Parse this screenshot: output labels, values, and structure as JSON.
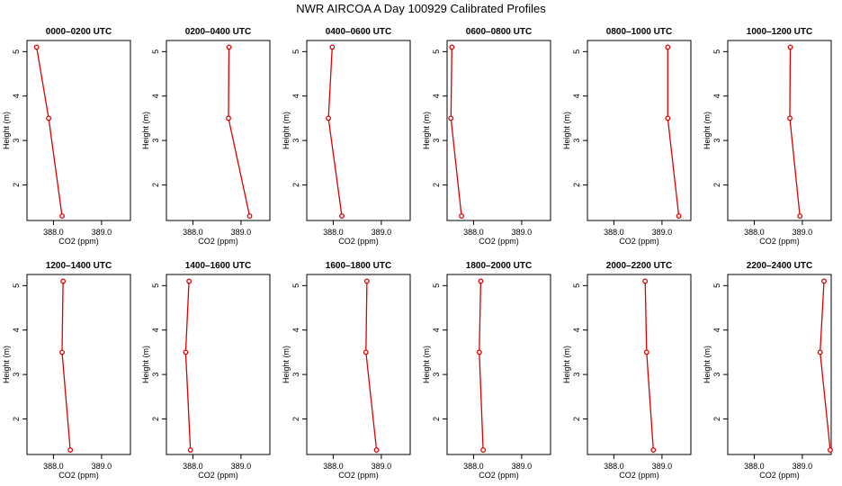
{
  "figure": {
    "title": "NWR AIRCOA A  Day 100929  Calibrated Profiles",
    "colors": {
      "line": "#dd0000",
      "axis": "#000000"
    }
  },
  "chart_data": [
    {
      "type": "line",
      "title": "0000–0200 UTC",
      "xlabel": "CO2 (ppm)",
      "ylabel": "Height (m)",
      "xticks": [
        388.0,
        389.0
      ],
      "xtick_labels": [
        "388.0",
        "389.0"
      ],
      "yticks": [
        2,
        3,
        4,
        5
      ],
      "ytick_labels": [
        "2",
        "3",
        "4",
        "5"
      ],
      "xlim": [
        387.45,
        389.6
      ],
      "ylim": [
        1.2,
        5.25
      ],
      "x": [
        387.65,
        387.9,
        388.18
      ],
      "y": [
        5.1,
        3.5,
        1.3
      ]
    },
    {
      "type": "line",
      "title": "0200–0400 UTC",
      "xlabel": "CO2 (ppm)",
      "ylabel": "Height (m)",
      "xticks": [
        388.0,
        389.0
      ],
      "xtick_labels": [
        "388.0",
        "389.0"
      ],
      "yticks": [
        2,
        3,
        4,
        5
      ],
      "ytick_labels": [
        "2",
        "3",
        "4",
        "5"
      ],
      "xlim": [
        387.45,
        389.6
      ],
      "ylim": [
        1.2,
        5.25
      ],
      "x": [
        388.75,
        388.74,
        389.18
      ],
      "y": [
        5.1,
        3.5,
        1.3
      ]
    },
    {
      "type": "line",
      "title": "0400–0600 UTC",
      "xlabel": "CO2 (ppm)",
      "ylabel": "Height (m)",
      "xticks": [
        388.0,
        389.0
      ],
      "xtick_labels": [
        "388.0",
        "389.0"
      ],
      "yticks": [
        2,
        3,
        4,
        5
      ],
      "ytick_labels": [
        "2",
        "3",
        "4",
        "5"
      ],
      "xlim": [
        387.45,
        389.6
      ],
      "ylim": [
        1.2,
        5.25
      ],
      "x": [
        387.98,
        387.9,
        388.18
      ],
      "y": [
        5.1,
        3.5,
        1.3
      ]
    },
    {
      "type": "line",
      "title": "0600–0800 UTC",
      "xlabel": "CO2 (ppm)",
      "ylabel": "Height (m)",
      "xticks": [
        388.0,
        389.0
      ],
      "xtick_labels": [
        "388.0",
        "389.0"
      ],
      "yticks": [
        2,
        3,
        4,
        5
      ],
      "ytick_labels": [
        "2",
        "3",
        "4",
        "5"
      ],
      "xlim": [
        387.45,
        389.6
      ],
      "ylim": [
        1.2,
        5.25
      ],
      "x": [
        387.55,
        387.53,
        387.75
      ],
      "y": [
        5.1,
        3.5,
        1.3
      ]
    },
    {
      "type": "line",
      "title": "0800–1000 UTC",
      "xlabel": "CO2 (ppm)",
      "ylabel": "Height (m)",
      "xticks": [
        388.0,
        389.0
      ],
      "xtick_labels": [
        "388.0",
        "389.0"
      ],
      "yticks": [
        2,
        3,
        4,
        5
      ],
      "ytick_labels": [
        "2",
        "3",
        "4",
        "5"
      ],
      "xlim": [
        387.45,
        389.6
      ],
      "ylim": [
        1.2,
        5.25
      ],
      "x": [
        389.12,
        389.12,
        389.35
      ],
      "y": [
        5.1,
        3.5,
        1.3
      ]
    },
    {
      "type": "line",
      "title": "1000–1200 UTC",
      "xlabel": "CO2 (ppm)",
      "ylabel": "Height (m)",
      "xticks": [
        388.0,
        389.0
      ],
      "xtick_labels": [
        "388.0",
        "389.0"
      ],
      "yticks": [
        2,
        3,
        4,
        5
      ],
      "ytick_labels": [
        "2",
        "3",
        "4",
        "5"
      ],
      "xlim": [
        387.45,
        389.6
      ],
      "ylim": [
        1.2,
        5.25
      ],
      "x": [
        388.75,
        388.74,
        388.95
      ],
      "y": [
        5.1,
        3.5,
        1.3
      ]
    },
    {
      "type": "line",
      "title": "1200–1400 UTC",
      "xlabel": "CO2 (ppm)",
      "ylabel": "Height (m)",
      "xticks": [
        388.0,
        389.0
      ],
      "xtick_labels": [
        "388.0",
        "389.0"
      ],
      "yticks": [
        2,
        3,
        4,
        5
      ],
      "ytick_labels": [
        "2",
        "3",
        "4",
        "5"
      ],
      "xlim": [
        387.45,
        389.6
      ],
      "ylim": [
        1.2,
        5.25
      ],
      "x": [
        388.2,
        388.18,
        388.35
      ],
      "y": [
        5.1,
        3.5,
        1.3
      ]
    },
    {
      "type": "line",
      "title": "1400–1600 UTC",
      "xlabel": "CO2 (ppm)",
      "ylabel": "Height (m)",
      "xticks": [
        388.0,
        389.0
      ],
      "xtick_labels": [
        "388.0",
        "389.0"
      ],
      "yticks": [
        2,
        3,
        4,
        5
      ],
      "ytick_labels": [
        "2",
        "3",
        "4",
        "5"
      ],
      "xlim": [
        387.45,
        389.6
      ],
      "ylim": [
        1.2,
        5.25
      ],
      "x": [
        387.92,
        387.85,
        387.95
      ],
      "y": [
        5.1,
        3.5,
        1.3
      ]
    },
    {
      "type": "line",
      "title": "1600–1800 UTC",
      "xlabel": "CO2 (ppm)",
      "ylabel": "Height (m)",
      "xticks": [
        388.0,
        389.0
      ],
      "xtick_labels": [
        "388.0",
        "389.0"
      ],
      "yticks": [
        2,
        3,
        4,
        5
      ],
      "ytick_labels": [
        "2",
        "3",
        "4",
        "5"
      ],
      "xlim": [
        387.45,
        389.6
      ],
      "ylim": [
        1.2,
        5.25
      ],
      "x": [
        388.7,
        388.68,
        388.9
      ],
      "y": [
        5.1,
        3.5,
        1.3
      ]
    },
    {
      "type": "line",
      "title": "1800–2000 UTC",
      "xlabel": "CO2 (ppm)",
      "ylabel": "Height (m)",
      "xticks": [
        388.0,
        389.0
      ],
      "xtick_labels": [
        "388.0",
        "389.0"
      ],
      "yticks": [
        2,
        3,
        4,
        5
      ],
      "ytick_labels": [
        "2",
        "3",
        "4",
        "5"
      ],
      "xlim": [
        387.45,
        389.6
      ],
      "ylim": [
        1.2,
        5.25
      ],
      "x": [
        388.15,
        388.12,
        388.2
      ],
      "y": [
        5.1,
        3.5,
        1.3
      ]
    },
    {
      "type": "line",
      "title": "2000–2200 UTC",
      "xlabel": "CO2 (ppm)",
      "ylabel": "Height (m)",
      "xticks": [
        388.0,
        389.0
      ],
      "xtick_labels": [
        "388.0",
        "389.0"
      ],
      "yticks": [
        2,
        3,
        4,
        5
      ],
      "ytick_labels": [
        "2",
        "3",
        "4",
        "5"
      ],
      "xlim": [
        387.45,
        389.6
      ],
      "ylim": [
        1.2,
        5.25
      ],
      "x": [
        388.65,
        388.68,
        388.82
      ],
      "y": [
        5.1,
        3.5,
        1.3
      ]
    },
    {
      "type": "line",
      "title": "2200–2400 UTC",
      "xlabel": "CO2 (ppm)",
      "ylabel": "Height (m)",
      "xticks": [
        388.0,
        389.0
      ],
      "xtick_labels": [
        "388.0",
        "389.0"
      ],
      "yticks": [
        2,
        3,
        4,
        5
      ],
      "ytick_labels": [
        "2",
        "3",
        "4",
        "5"
      ],
      "xlim": [
        387.45,
        389.6
      ],
      "ylim": [
        1.2,
        5.25
      ],
      "x": [
        389.45,
        389.37,
        389.58
      ],
      "y": [
        5.1,
        3.5,
        1.3
      ]
    }
  ]
}
